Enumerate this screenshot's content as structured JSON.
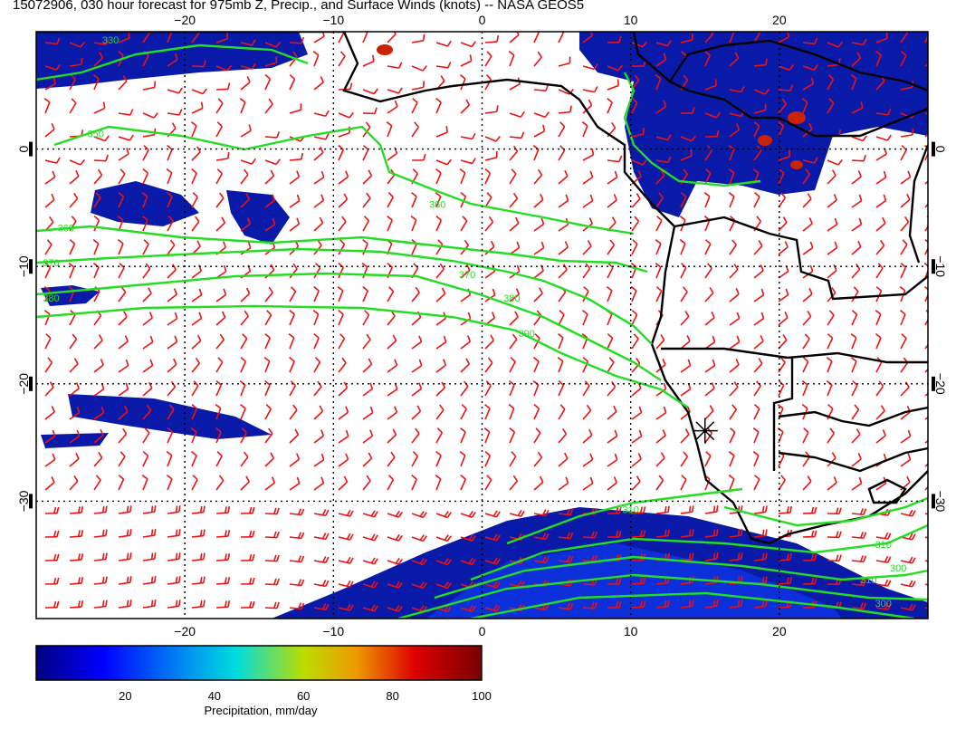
{
  "title": "15072906, 030 hour forecast for 975mb Z, Precip., and Surface Winds (knots) -- NASA GEOS5",
  "map": {
    "lon_range": [
      -30,
      30
    ],
    "lat_range": [
      -40,
      10
    ],
    "lon_ticks": [
      {
        "value": -20,
        "label": "−20"
      },
      {
        "value": -10,
        "label": "−10"
      },
      {
        "value": 0,
        "label": "0"
      },
      {
        "value": 10,
        "label": "10"
      },
      {
        "value": 20,
        "label": "20"
      }
    ],
    "lat_ticks": [
      {
        "value": 0,
        "label": "0"
      },
      {
        "value": -10,
        "label": "−10"
      },
      {
        "value": -20,
        "label": "−20"
      },
      {
        "value": -30,
        "label": "−30"
      }
    ],
    "grid_dotted": true,
    "marker": {
      "lon": 15,
      "lat": -24,
      "symbol": "star"
    },
    "colors": {
      "coast": "#000000",
      "contour": "#22dd22",
      "wind": "#ee1111",
      "precip_base": "#0000aa"
    }
  },
  "contours": [
    {
      "label": "330",
      "lon": -25,
      "lat": 9
    },
    {
      "label": "350",
      "lon": -26,
      "lat": 1
    },
    {
      "label": "360",
      "lon": -28,
      "lat": -7
    },
    {
      "label": "360",
      "lon": -3,
      "lat": -5
    },
    {
      "label": "370",
      "lon": -29,
      "lat": -10
    },
    {
      "label": "370",
      "lon": -1,
      "lat": -11
    },
    {
      "label": "380",
      "lon": -29,
      "lat": -13
    },
    {
      "label": "380",
      "lon": 2,
      "lat": -13
    },
    {
      "label": "390",
      "lon": 3,
      "lat": -16
    },
    {
      "label": "310",
      "lon": 10,
      "lat": -31
    },
    {
      "label": "310",
      "lon": 27,
      "lat": -34
    },
    {
      "label": "300",
      "lon": 28,
      "lat": -36
    },
    {
      "label": "310",
      "lon": 26,
      "lat": -37
    },
    {
      "label": "300",
      "lon": 27,
      "lat": -39
    }
  ],
  "colorbar": {
    "ticks": [
      "20",
      "40",
      "60",
      "80",
      "100"
    ],
    "label": "Precipitation, mm/day",
    "range": [
      0,
      100
    ]
  }
}
